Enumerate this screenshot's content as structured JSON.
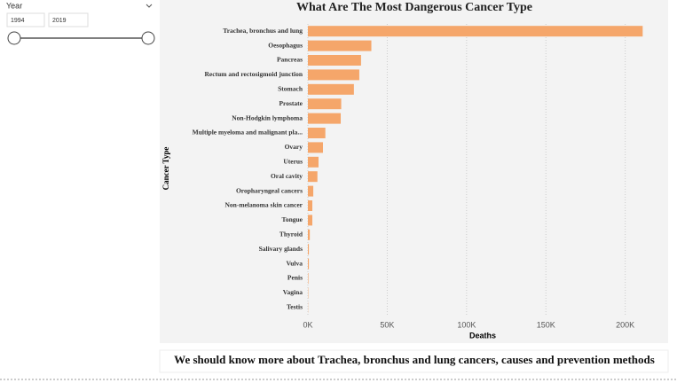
{
  "slicer": {
    "title": "Year",
    "from": 1994,
    "to": 2019
  },
  "chart_data": {
    "type": "barh",
    "title": "What Are The Most Dangerous Cancer Type",
    "y_label": "Cancer Type",
    "x_label": "Deaths",
    "categories": [
      "Trachea, bronchus and lung",
      "Oesophagus",
      "Pancreas",
      "Rectum and rectosigmoid junction",
      "Stomach",
      "Prostate",
      "Non-Hodgkin lymphoma",
      "Multiple myeloma and malignant pla...",
      "Ovary",
      "Uterus",
      "Oral cavity",
      "Oropharyngeal cancers",
      "Non-melanoma skin cancer",
      "Tongue",
      "Thyroid",
      "Salivary glands",
      "Vulva",
      "Penis",
      "Vagina",
      "Testis"
    ],
    "values": [
      211000,
      40000,
      33500,
      32400,
      29000,
      21000,
      20700,
      11000,
      9500,
      6700,
      6000,
      3400,
      2800,
      2800,
      1200,
      600,
      600,
      300,
      200,
      100
    ],
    "color": "#f5a66a",
    "xlim": [
      0,
      222000
    ],
    "xticks": [
      {
        "value": 0,
        "label": "0K"
      },
      {
        "value": 50000,
        "label": "50K"
      },
      {
        "value": 100000,
        "label": "100K"
      },
      {
        "value": 150000,
        "label": "150K"
      },
      {
        "value": 200000,
        "label": "200K"
      }
    ],
    "grid": true
  },
  "footer": "We should know more about Trachea, bronchus and lung cancers, causes and prevention methods"
}
